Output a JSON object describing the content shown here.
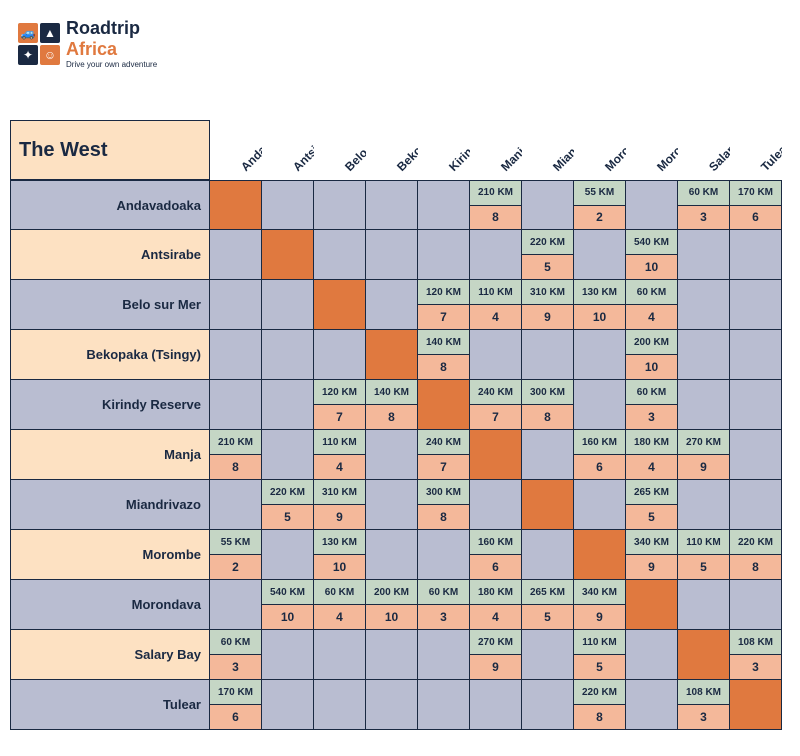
{
  "brand": {
    "line1": "Roadtrip",
    "line2": "Africa",
    "tagline": "Drive your own adventure"
  },
  "title": "The West",
  "colors": {
    "row_label_odd": "#b9bdd1",
    "row_label_even": "#fde1c2",
    "header_odd": "#fde1c2",
    "header_even": "#b9bdd1",
    "cell_km_bg": "#c5d6c5",
    "cell_hr_bg": "#f4b89a",
    "empty_bg": "#b9bdd1",
    "diag_bg": "#e0793f",
    "border": "#1a2942",
    "logo": [
      "#e0793f",
      "#1a2942",
      "#1a2942",
      "#e0793f"
    ]
  },
  "locations": [
    "Andavadoaka",
    "Antsirabe",
    "Belo sur Mer",
    "Bekopaka (Tsingy)",
    "Kirindy Reserve",
    "Manja",
    "Miandrivazo",
    "Morombe",
    "Morondava",
    "Salary Bay",
    "Tulear"
  ],
  "matrix": [
    [
      null,
      null,
      null,
      null,
      null,
      {
        "km": "210 KM",
        "hr": "8"
      },
      null,
      {
        "km": "55 KM",
        "hr": "2"
      },
      null,
      {
        "km": "60 KM",
        "hr": "3"
      },
      {
        "km": "170 KM",
        "hr": "6"
      }
    ],
    [
      null,
      null,
      null,
      null,
      null,
      null,
      {
        "km": "220 KM",
        "hr": "5"
      },
      null,
      {
        "km": "540 KM",
        "hr": "10"
      },
      null,
      null
    ],
    [
      null,
      null,
      null,
      null,
      {
        "km": "120 KM",
        "hr": "7"
      },
      {
        "km": "110 KM",
        "hr": "4"
      },
      {
        "km": "310 KM",
        "hr": "9"
      },
      {
        "km": "130 KM",
        "hr": "10"
      },
      {
        "km": "60 KM",
        "hr": "4"
      },
      null,
      null
    ],
    [
      null,
      null,
      null,
      null,
      {
        "km": "140 KM",
        "hr": "8"
      },
      null,
      null,
      null,
      {
        "km": "200 KM",
        "hr": "10"
      },
      null,
      null
    ],
    [
      null,
      null,
      {
        "km": "120 KM",
        "hr": "7"
      },
      {
        "km": "140 KM",
        "hr": "8"
      },
      null,
      {
        "km": "240 KM",
        "hr": "7"
      },
      {
        "km": "300 KM",
        "hr": "8"
      },
      null,
      {
        "km": "60 KM",
        "hr": "3"
      },
      null,
      null
    ],
    [
      {
        "km": "210 KM",
        "hr": "8"
      },
      null,
      {
        "km": "110 KM",
        "hr": "4"
      },
      null,
      {
        "km": "240 KM",
        "hr": "7"
      },
      null,
      null,
      {
        "km": "160 KM",
        "hr": "6"
      },
      {
        "km": "180 KM",
        "hr": "4"
      },
      {
        "km": "270 KM",
        "hr": "9"
      },
      null
    ],
    [
      null,
      {
        "km": "220 KM",
        "hr": "5"
      },
      {
        "km": "310 KM",
        "hr": "9"
      },
      null,
      {
        "km": "300 KM",
        "hr": "8"
      },
      null,
      null,
      null,
      {
        "km": "265 KM",
        "hr": "5"
      },
      null,
      null
    ],
    [
      {
        "km": "55 KM",
        "hr": "2"
      },
      null,
      {
        "km": "130 KM",
        "hr": "10"
      },
      null,
      null,
      {
        "km": "160 KM",
        "hr": "6"
      },
      null,
      null,
      {
        "km": "340 KM",
        "hr": "9"
      },
      {
        "km": "110 KM",
        "hr": "5"
      },
      {
        "km": "220 KM",
        "hr": "8"
      }
    ],
    [
      null,
      {
        "km": "540 KM",
        "hr": "10"
      },
      {
        "km": "60 KM",
        "hr": "4"
      },
      {
        "km": "200 KM",
        "hr": "10"
      },
      {
        "km": "60 KM",
        "hr": "3"
      },
      {
        "km": "180 KM",
        "hr": "4"
      },
      {
        "km": "265 KM",
        "hr": "5"
      },
      {
        "km": "340 KM",
        "hr": "9"
      },
      null,
      null,
      null
    ],
    [
      {
        "km": "60 KM",
        "hr": "3"
      },
      null,
      null,
      null,
      null,
      {
        "km": "270 KM",
        "hr": "9"
      },
      null,
      {
        "km": "110 KM",
        "hr": "5"
      },
      null,
      null,
      {
        "km": "108 KM",
        "hr": "3"
      }
    ],
    [
      {
        "km": "170 KM",
        "hr": "6"
      },
      null,
      null,
      null,
      null,
      null,
      null,
      {
        "km": "220 KM",
        "hr": "8"
      },
      null,
      {
        "km": "108 KM",
        "hr": "3"
      },
      null
    ]
  ]
}
